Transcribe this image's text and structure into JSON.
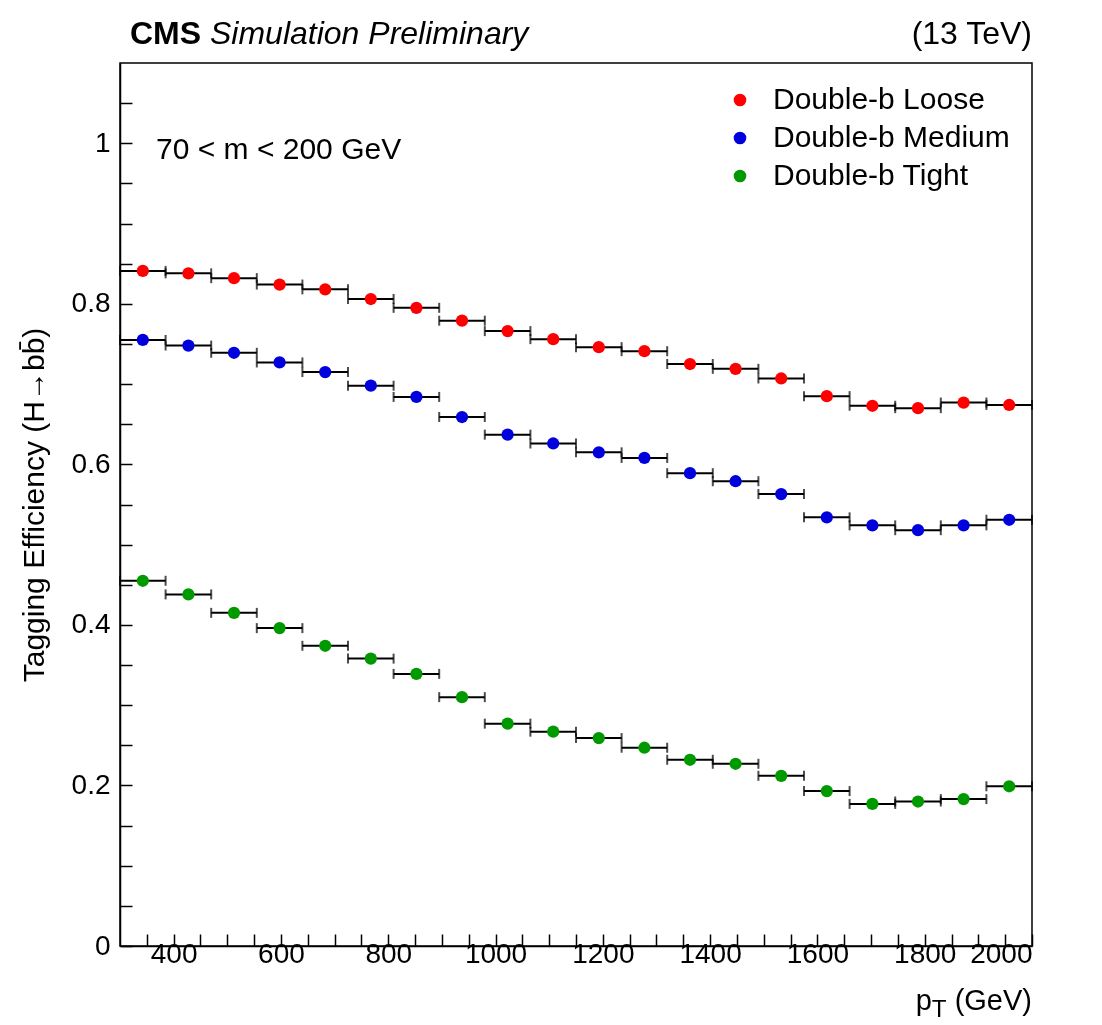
{
  "chart_data": {
    "type": "scatter",
    "title": "CMS",
    "subtitle": "Simulation Preliminary",
    "xlabel": "p$_{T}$ (GeV)",
    "ylabel": "Tagging Efficiency (H→bb̄)",
    "annotations": [
      "(13 TeV)",
      "70 < m < 200 GeV"
    ],
    "x": [
      342.5,
      427.5,
      512.5,
      597.5,
      682.5,
      767.5,
      852.5,
      937.5,
      1022.5,
      1107.5,
      1192.5,
      1277.5,
      1362.5,
      1447.5,
      1532.5,
      1617.5,
      1702.5,
      1787.5,
      1872.5,
      1957.5
    ],
    "series": [
      {
        "name": "Double-b Loose",
        "color": "#ff0000",
        "xerrors": [
          42.5,
          42.5,
          42.5,
          42.5,
          42.5,
          42.5,
          42.5,
          42.5,
          42.5,
          42.5,
          42.5,
          42.5,
          42.5,
          42.5,
          42.5,
          42.5,
          42.5,
          42.5,
          42.5,
          42.5
        ],
        "values": [
          0.841,
          0.838,
          0.832,
          0.824,
          0.818,
          0.806,
          0.795,
          0.779,
          0.766,
          0.756,
          0.746,
          0.741,
          0.725,
          0.719,
          0.707,
          0.685,
          0.673,
          0.67,
          0.677,
          0.674
        ]
      },
      {
        "name": "Double-b Medium",
        "color": "#0000dd",
        "xerrors": [
          42.5,
          42.5,
          42.5,
          42.5,
          42.5,
          42.5,
          42.5,
          42.5,
          42.5,
          42.5,
          42.5,
          42.5,
          42.5,
          42.5,
          42.5,
          42.5,
          42.5,
          42.5,
          42.5,
          42.5
        ],
        "values": [
          0.755,
          0.748,
          0.739,
          0.727,
          0.715,
          0.698,
          0.684,
          0.659,
          0.637,
          0.626,
          0.615,
          0.608,
          0.589,
          0.579,
          0.563,
          0.534,
          0.524,
          0.518,
          0.524,
          0.531
        ]
      },
      {
        "name": "Double-b Tight",
        "color": "#009900",
        "xerrors": [
          42.5,
          42.5,
          42.5,
          42.5,
          42.5,
          42.5,
          42.5,
          42.5,
          42.5,
          42.5,
          42.5,
          42.5,
          42.5,
          42.5,
          42.5,
          42.5,
          42.5,
          42.5,
          42.5,
          42.5
        ],
        "values": [
          0.455,
          0.438,
          0.415,
          0.396,
          0.374,
          0.358,
          0.339,
          0.31,
          0.277,
          0.267,
          0.259,
          0.247,
          0.232,
          0.227,
          0.212,
          0.193,
          0.177,
          0.18,
          0.183,
          0.199
        ]
      }
    ],
    "xlim": [
      300,
      2000
    ],
    "xticks": [
      {
        "value": 350,
        "label": null
      },
      400,
      {
        "value": 450,
        "label": null
      },
      {
        "value": 500,
        "label": null
      },
      {
        "value": 550,
        "label": null
      },
      600,
      {
        "value": 650,
        "label": null
      },
      {
        "value": 700,
        "label": null
      },
      {
        "value": 750,
        "label": null
      },
      800,
      {
        "value": 850,
        "label": null
      },
      {
        "value": 900,
        "label": null
      },
      {
        "value": 950,
        "label": null
      },
      1000,
      {
        "value": 1050,
        "label": null
      },
      {
        "value": 1100,
        "label": null
      },
      {
        "value": 1150,
        "label": null
      },
      1200,
      {
        "value": 1250,
        "label": null
      },
      {
        "value": 1300,
        "label": null
      },
      {
        "value": 1350,
        "label": null
      },
      1400,
      {
        "value": 1450,
        "label": null
      },
      {
        "value": 1500,
        "label": null
      },
      {
        "value": 1550,
        "label": null
      },
      1600,
      {
        "value": 1650,
        "label": null
      },
      {
        "value": 1700,
        "label": null
      },
      {
        "value": 1750,
        "label": null
      },
      1800,
      {
        "value": 1850,
        "label": null
      },
      {
        "value": 1900,
        "label": null
      },
      {
        "value": 1950,
        "label": null
      },
      2000
    ],
    "ylim": [
      0,
      1.1
    ],
    "yticks": [
      0,
      {
        "value": 0.05,
        "label": null
      },
      {
        "value": 0.1,
        "label": null
      },
      {
        "value": 0.15,
        "label": null
      },
      0.2,
      {
        "value": 0.25,
        "label": null
      },
      {
        "value": 0.3,
        "label": null
      },
      {
        "value": 0.35,
        "label": null
      },
      0.4,
      {
        "value": 0.45,
        "label": null
      },
      {
        "value": 0.5,
        "label": null
      },
      {
        "value": 0.55,
        "label": null
      },
      0.6,
      {
        "value": 0.65,
        "label": null
      },
      {
        "value": 0.7,
        "label": null
      },
      {
        "value": 0.75,
        "label": null
      },
      0.8,
      {
        "value": 0.85,
        "label": null
      },
      {
        "value": 0.9,
        "label": null
      },
      {
        "value": 0.95,
        "label": null
      },
      1,
      {
        "value": 1.05,
        "label": null
      }
    ],
    "legend": "top right",
    "marker": "circle"
  }
}
